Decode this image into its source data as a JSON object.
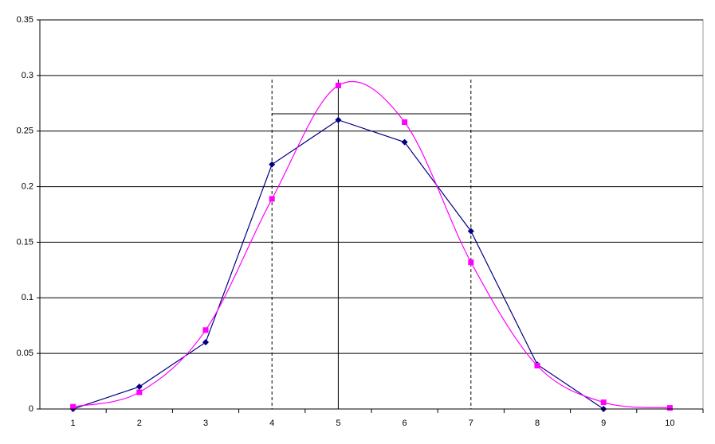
{
  "chart_data": {
    "type": "line",
    "categories": [
      "1",
      "2",
      "3",
      "4",
      "5",
      "6",
      "7",
      "8",
      "9",
      "10"
    ],
    "series": [
      {
        "color": "#000080",
        "marker": "diamond",
        "smooth": false,
        "values": [
          0,
          0.02,
          0.06,
          0.22,
          0.26,
          0.24,
          0.16,
          0.04,
          0,
          null
        ]
      },
      {
        "color": "#ff00ff",
        "marker": "square",
        "smooth": true,
        "values": [
          0.002,
          0.015,
          0.071,
          0.189,
          0.291,
          0.258,
          0.132,
          0.039,
          0.006,
          0.001
        ]
      }
    ],
    "ylim": [
      0,
      0.35
    ],
    "yticks": [
      0,
      0.05,
      0.1,
      0.15,
      0.2,
      0.25,
      0.3,
      0.35
    ],
    "grid": true
  }
}
